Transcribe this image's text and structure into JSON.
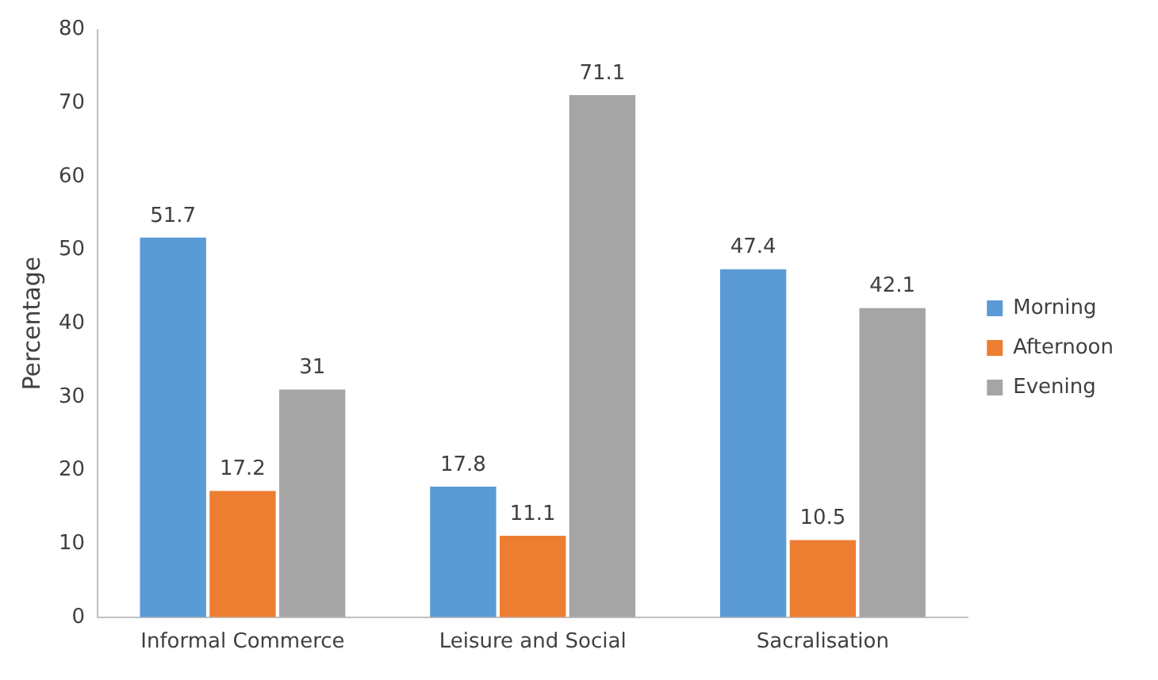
{
  "chart_data": {
    "type": "bar",
    "ylabel": "Percentage",
    "categories": [
      "Informal Commerce",
      "Leisure and Social",
      "Sacralisation"
    ],
    "series": [
      {
        "name": "Morning",
        "color": "#5b9bd5",
        "values": [
          51.7,
          17.8,
          47.4
        ]
      },
      {
        "name": "Afternoon",
        "color": "#ed7d31",
        "values": [
          17.2,
          11.1,
          10.5
        ]
      },
      {
        "name": "Evening",
        "color": "#a5a5a5",
        "values": [
          31,
          71.1,
          42.1
        ]
      }
    ],
    "ylim": [
      0,
      80
    ],
    "yticks": [
      0,
      10,
      20,
      30,
      40,
      50,
      60,
      70,
      80
    ],
    "grid": false,
    "legend": "right",
    "data_labels": true
  }
}
